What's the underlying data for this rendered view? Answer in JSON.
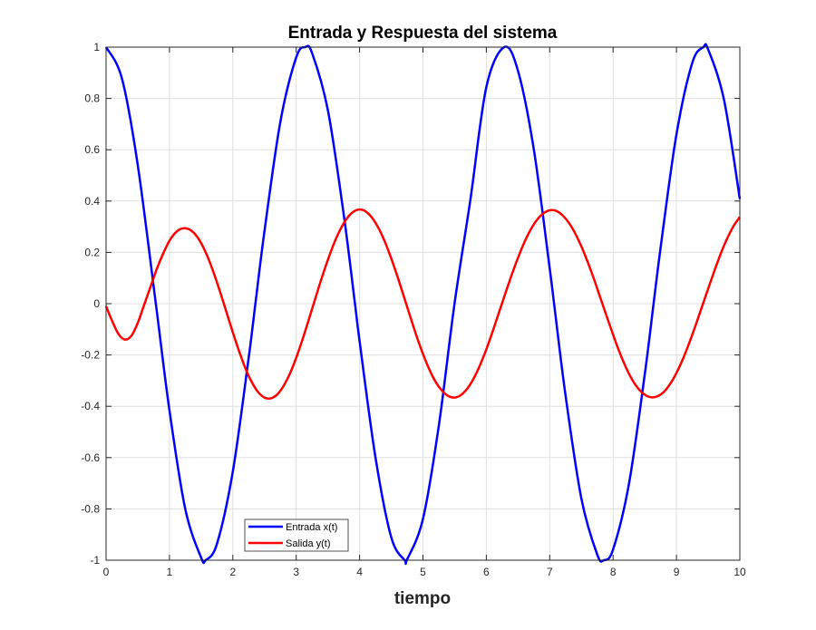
{
  "chart_data": {
    "type": "line",
    "title": "Entrada y Respuesta del sistema",
    "xlabel": "tiempo",
    "ylabel": "",
    "xlim": [
      0,
      10
    ],
    "ylim": [
      -1,
      1
    ],
    "xticks": [
      0,
      1,
      2,
      3,
      4,
      5,
      6,
      7,
      8,
      9,
      10
    ],
    "yticks": [
      -1,
      -0.8,
      -0.6,
      -0.4,
      -0.2,
      0,
      0.2,
      0.4,
      0.6,
      0.8,
      1
    ],
    "xtick_labels": [
      "0",
      "1",
      "2",
      "3",
      "4",
      "5",
      "6",
      "7",
      "8",
      "9",
      "10"
    ],
    "ytick_labels": [
      "-1",
      "-0.8",
      "-0.6",
      "-0.4",
      "-0.2",
      "0",
      "0.2",
      "0.4",
      "0.6",
      "0.8",
      "1"
    ],
    "grid": true,
    "legend_position": "bottom-left",
    "series": [
      {
        "name": "Entrada x(t)",
        "color": "#0000ff",
        "x": [
          0,
          0.25,
          0.5,
          0.785,
          1.0,
          1.25,
          1.5,
          1.571,
          1.75,
          2.0,
          2.25,
          2.356,
          2.5,
          2.75,
          3.0,
          3.142,
          3.25,
          3.5,
          3.75,
          3.927,
          4.0,
          4.25,
          4.5,
          4.712,
          4.75,
          5.0,
          5.25,
          5.498,
          5.75,
          6.0,
          6.283,
          6.5,
          6.75,
          7.0,
          7.069,
          7.25,
          7.5,
          7.75,
          7.854,
          8.0,
          8.25,
          8.5,
          8.639,
          8.75,
          9.0,
          9.25,
          9.425,
          9.5,
          9.75,
          10.0
        ],
        "y": [
          1.0,
          0.878,
          0.54,
          0.0,
          -0.416,
          -0.801,
          -0.99,
          -1.0,
          -0.936,
          -0.654,
          -0.211,
          0.0,
          0.284,
          0.709,
          0.96,
          1.0,
          0.977,
          0.754,
          0.347,
          0.0,
          -0.146,
          -0.598,
          -0.911,
          -1.0,
          -0.997,
          -0.839,
          -0.476,
          0.0,
          0.408,
          0.844,
          1.0,
          0.907,
          0.6,
          0.137,
          0.0,
          -0.358,
          -0.76,
          -0.978,
          -1.0,
          -0.958,
          -0.703,
          -0.275,
          0.0,
          0.219,
          0.66,
          0.939,
          1.0,
          0.991,
          0.795,
          0.408
        ]
      },
      {
        "name": "Salida y(t)",
        "color": "#ff0000",
        "x": [
          0,
          0.1,
          0.2,
          0.3,
          0.4,
          0.5,
          0.6,
          0.7,
          0.8,
          0.9,
          1.0,
          1.1,
          1.2,
          1.3,
          1.4,
          1.5,
          1.6,
          1.7,
          1.8,
          1.9,
          2.0,
          2.1,
          2.2,
          2.3,
          2.4,
          2.5,
          2.6,
          2.7,
          2.8,
          2.9,
          3.0,
          3.1,
          3.2,
          3.3,
          3.4,
          3.5,
          3.6,
          3.7,
          3.8,
          3.9,
          4.0,
          4.1,
          4.2,
          4.3,
          4.4,
          4.5,
          4.6,
          4.7,
          4.8,
          4.9,
          5.0,
          5.1,
          5.2,
          5.3,
          5.4,
          5.5,
          5.6,
          5.7,
          5.8,
          5.9,
          6.0,
          6.1,
          6.2,
          6.3,
          6.4,
          6.5,
          6.6,
          6.7,
          6.8,
          6.9,
          7.0,
          7.1,
          7.2,
          7.3,
          7.4,
          7.5,
          7.6,
          7.7,
          7.8,
          7.9,
          8.0,
          8.1,
          8.2,
          8.3,
          8.4,
          8.5,
          8.6,
          8.7,
          8.8,
          8.9,
          9.0,
          9.1,
          9.2,
          9.3,
          9.4,
          9.5,
          9.6,
          9.7,
          9.8,
          9.9,
          10.0
        ],
        "y": [
          -0.01,
          -0.07,
          -0.12,
          -0.14,
          -0.125,
          -0.075,
          -0.005,
          0.065,
          0.135,
          0.195,
          0.245,
          0.278,
          0.293,
          0.291,
          0.272,
          0.236,
          0.184,
          0.119,
          0.045,
          -0.033,
          -0.112,
          -0.186,
          -0.253,
          -0.306,
          -0.345,
          -0.366,
          -0.369,
          -0.354,
          -0.321,
          -0.273,
          -0.211,
          -0.139,
          -0.061,
          0.019,
          0.098,
          0.171,
          0.237,
          0.291,
          0.332,
          0.358,
          0.367,
          0.359,
          0.334,
          0.294,
          0.241,
          0.176,
          0.104,
          0.027,
          -0.051,
          -0.127,
          -0.196,
          -0.256,
          -0.305,
          -0.339,
          -0.36,
          -0.366,
          -0.356,
          -0.331,
          -0.292,
          -0.24,
          -0.178,
          -0.108,
          -0.034,
          0.04,
          0.112,
          0.179,
          0.239,
          0.289,
          0.327,
          0.352,
          0.364,
          0.362,
          0.345,
          0.316,
          0.275,
          0.223,
          0.162,
          0.095,
          0.022,
          -0.05,
          -0.121,
          -0.188,
          -0.247,
          -0.296,
          -0.332,
          -0.355,
          -0.365,
          -0.361,
          -0.344,
          -0.313,
          -0.27,
          -0.217,
          -0.154,
          -0.086,
          -0.014,
          0.058,
          0.129,
          0.196,
          0.254,
          0.302,
          0.338
        ]
      }
    ]
  }
}
